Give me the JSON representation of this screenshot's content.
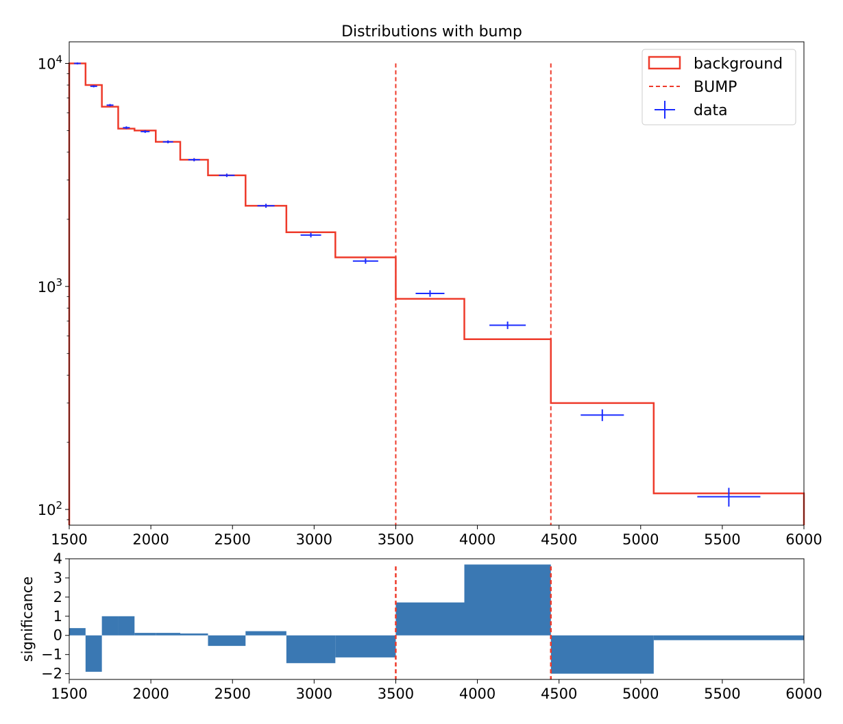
{
  "chart_data": [
    {
      "type": "line",
      "title": "Distributions with bump",
      "xlabel": "",
      "ylabel": "",
      "xlim": [
        1500,
        6000
      ],
      "ylim": [
        85,
        12500
      ],
      "yscale": "log",
      "x_ticks": [
        1500,
        2000,
        2500,
        3000,
        3500,
        4000,
        4500,
        5000,
        5500,
        6000
      ],
      "y_ticks": [
        {
          "value": 100,
          "base": "10",
          "exp": "2"
        },
        {
          "value": 1000,
          "base": "10",
          "exp": "3"
        },
        {
          "value": 10000,
          "base": "10",
          "exp": "4"
        }
      ],
      "legend_position": "top-right",
      "legend": [
        "background",
        "BUMP",
        "data"
      ],
      "bin_edges": [
        1500,
        1600,
        1700,
        1800,
        1900,
        2030,
        2180,
        2350,
        2580,
        2830,
        3130,
        3500,
        3920,
        4450,
        5080,
        6000
      ],
      "series": [
        {
          "name": "background",
          "style": "step",
          "color": "#ee3a2a",
          "values": [
            10000,
            8000,
            6400,
            5100,
            5000,
            4450,
            3700,
            3150,
            2300,
            1750,
            1350,
            880,
            580,
            300,
            118
          ]
        },
        {
          "name": "data",
          "style": "errorbar",
          "color": "#1a2bff",
          "x": [
            1550,
            1650,
            1750,
            1850,
            1965,
            2105,
            2265,
            2465,
            2705,
            2980,
            3315,
            3710,
            4185,
            4765,
            5540
          ],
          "values": [
            10000,
            7900,
            6500,
            5150,
            4950,
            4450,
            3700,
            3150,
            2300,
            1700,
            1300,
            930,
            670,
            265,
            114
          ],
          "yerr": [
            100,
            89,
            81,
            72,
            70,
            67,
            61,
            56,
            48,
            41,
            36,
            31,
            26,
            16,
            11
          ]
        }
      ],
      "bump": {
        "name": "BUMP",
        "color": "#ee3a2a",
        "x": [
          3500,
          4450
        ]
      }
    },
    {
      "type": "bar",
      "title": "",
      "xlabel": "",
      "ylabel": "significance",
      "xlim": [
        1500,
        6000
      ],
      "ylim": [
        -2.3,
        4
      ],
      "x_ticks": [
        1500,
        2000,
        2500,
        3000,
        3500,
        4000,
        4500,
        5000,
        5500,
        6000
      ],
      "y_ticks": [
        -2,
        -1,
        0,
        1,
        2,
        3,
        4
      ],
      "bar_color": "#3a78b3",
      "bin_edges": [
        1500,
        1600,
        1700,
        1800,
        1900,
        2030,
        2180,
        2350,
        2580,
        2830,
        3130,
        3500,
        3920,
        4450,
        5080,
        6000
      ],
      "values": [
        0.38,
        -1.9,
        1.0,
        1.0,
        0.13,
        0.13,
        0.1,
        -0.55,
        0.22,
        -1.45,
        -1.15,
        1.72,
        3.7,
        -2.0,
        -0.25
      ],
      "bump_lines": [
        3500,
        4450
      ]
    }
  ]
}
